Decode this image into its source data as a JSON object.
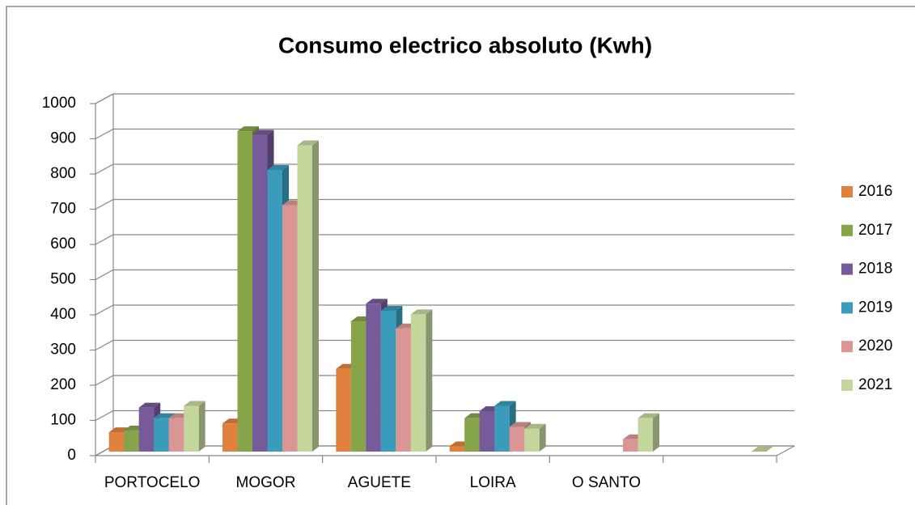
{
  "chart_data": {
    "type": "bar3d",
    "title": "Consumo electrico absoluto (Kwh)",
    "categories": [
      "PORTOCELO",
      "MOGOR",
      "AGUETE",
      "LOIRA",
      "O SANTO",
      null
    ],
    "series": [
      {
        "name": "2016",
        "color": "#e0823d",
        "values": [
          55,
          80,
          235,
          15,
          null,
          null
        ]
      },
      {
        "name": "2017",
        "color": "#86a44a",
        "values": [
          60,
          910,
          370,
          95,
          null,
          null
        ]
      },
      {
        "name": "2018",
        "color": "#775a9a",
        "values": [
          125,
          900,
          420,
          115,
          null,
          null
        ]
      },
      {
        "name": "2019",
        "color": "#3a9bbb",
        "values": [
          95,
          800,
          400,
          130,
          null,
          null
        ]
      },
      {
        "name": "2020",
        "color": "#d99694",
        "values": [
          95,
          700,
          350,
          70,
          35,
          null
        ]
      },
      {
        "name": "2021",
        "color": "#c3d69b",
        "values": [
          130,
          870,
          390,
          65,
          95,
          0
        ]
      }
    ],
    "ylim": [
      0,
      1000
    ],
    "yticks": [
      0,
      100,
      200,
      300,
      400,
      500,
      600,
      700,
      800,
      900,
      1000
    ],
    "grid": true,
    "legend": "right"
  }
}
